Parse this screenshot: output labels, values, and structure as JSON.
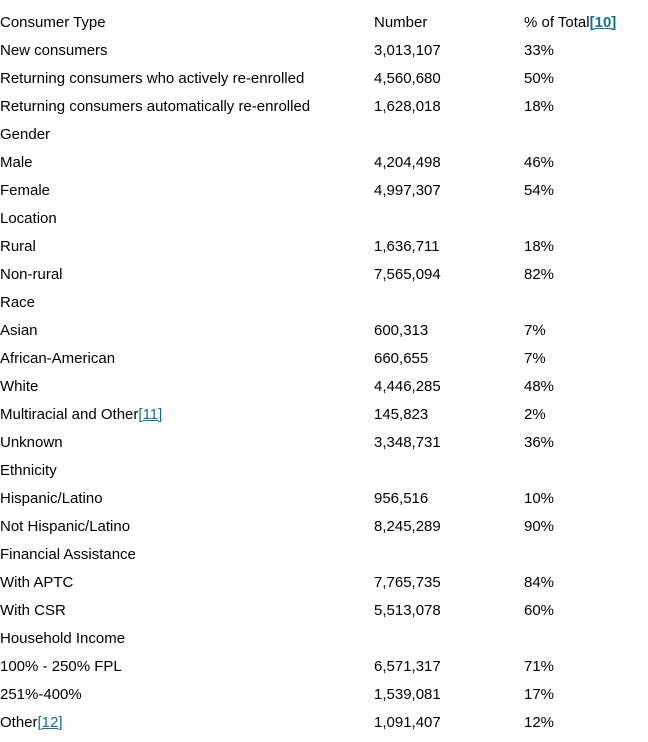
{
  "header": {
    "consumer_type": "Consumer Type",
    "number": "Number",
    "pct": "% of Total",
    "pct_link": "[10]"
  },
  "colors": {
    "link": "#176d8e",
    "text": "#000000",
    "background": "#ffffff"
  },
  "rows": [
    {
      "type": "data",
      "label": "New consumers",
      "number": "3,013,107",
      "pct": "33%"
    },
    {
      "type": "data",
      "label": "Returning consumers who actively re-enrolled",
      "number": "4,560,680",
      "pct": "50%"
    },
    {
      "type": "data",
      "label": "Returning consumers automatically re-enrolled",
      "number": "1,628,018",
      "pct": "18%"
    },
    {
      "type": "section",
      "label": "Gender"
    },
    {
      "type": "data",
      "label": "Male",
      "number": "4,204,498",
      "pct": "46%"
    },
    {
      "type": "data",
      "label": "Female",
      "number": "4,997,307",
      "pct": "54%"
    },
    {
      "type": "section",
      "label": "Location"
    },
    {
      "type": "data",
      "label": "Rural",
      "number": "1,636,711",
      "pct": "18%"
    },
    {
      "type": "data",
      "label": "Non-rural",
      "number": "7,565,094",
      "pct": "82%"
    },
    {
      "type": "section",
      "label": "Race"
    },
    {
      "type": "data",
      "label": "Asian",
      "number": "600,313",
      "pct": "7%"
    },
    {
      "type": "data",
      "label": "African-American",
      "number": "660,655",
      "pct": "7%"
    },
    {
      "type": "data",
      "label": "White",
      "number": "4,446,285",
      "pct": "48%"
    },
    {
      "type": "data",
      "label": "Multiracial and Other",
      "link": "[11]",
      "number": "145,823",
      "pct": "2%"
    },
    {
      "type": "data",
      "label": "Unknown",
      "number": "3,348,731",
      "pct": "36%"
    },
    {
      "type": "section",
      "label": "Ethnicity"
    },
    {
      "type": "data",
      "label": "Hispanic/Latino",
      "number": "956,516",
      "pct": "10%"
    },
    {
      "type": "data",
      "label": "Not Hispanic/Latino",
      "number": "8,245,289",
      "pct": "90%"
    },
    {
      "type": "section",
      "label": "Financial Assistance"
    },
    {
      "type": "data",
      "label": "With APTC",
      "number": "7,765,735",
      "pct": "84%"
    },
    {
      "type": "data",
      "label": "With CSR",
      "number": "5,513,078",
      "pct": "60%"
    },
    {
      "type": "section",
      "label": "Household Income"
    },
    {
      "type": "data",
      "label": "100% - 250% FPL",
      "number": "6,571,317",
      "pct": "71%"
    },
    {
      "type": "data",
      "label": "251%-400%",
      "number": "1,539,081",
      "pct": "17%"
    },
    {
      "type": "data",
      "label": "Other",
      "link": "[12]",
      "number": "1,091,407",
      "pct": "12%"
    }
  ]
}
